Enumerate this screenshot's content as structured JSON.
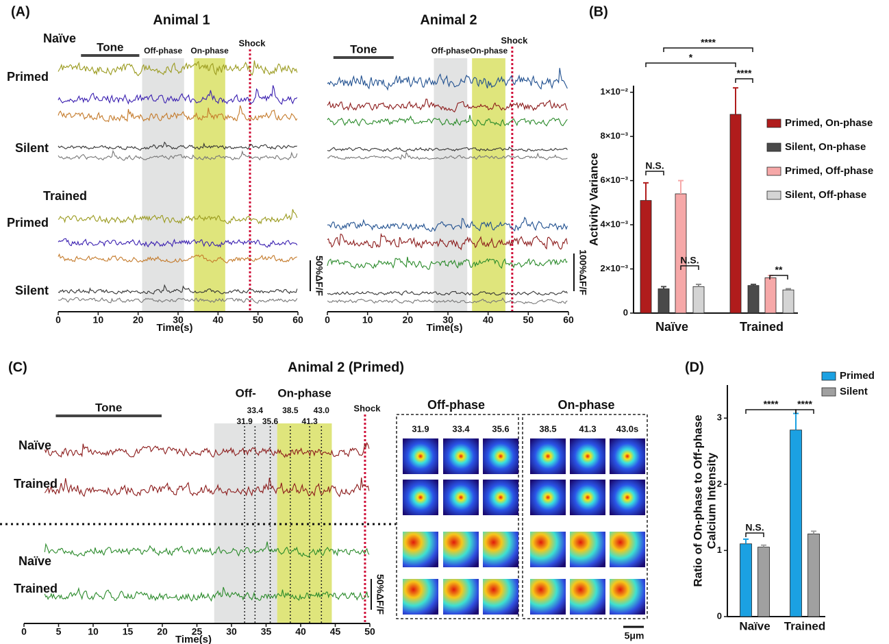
{
  "panel_labels": [
    "(A)",
    "(B)",
    "(C)",
    "(D)"
  ],
  "chart_data": [
    {
      "type": "trace",
      "title": "Animal 1",
      "xlim": [
        0,
        60
      ],
      "xticks": [
        0,
        10,
        20,
        30,
        40,
        50,
        60
      ],
      "xlabel": "Time(s)",
      "events": [
        {
          "label": "Tone",
          "start": 5.7,
          "end": 20.3
        },
        {
          "label": "Off-phase",
          "start": 21,
          "end": 31.5
        },
        {
          "label": "On-phase",
          "start": 34,
          "end": 41.8
        },
        {
          "label": "Shock",
          "at": 48
        }
      ],
      "row_labels": [
        "Naïve",
        "Primed",
        "Silent",
        "Trained",
        "Primed",
        "Silent"
      ],
      "scale_bar": "50%ΔF/F"
    },
    {
      "type": "trace",
      "title": "Animal 2",
      "xlim": [
        0,
        60
      ],
      "xticks": [
        0,
        10,
        20,
        30,
        40,
        50,
        60
      ],
      "xlabel": "Time(s)",
      "events": [
        {
          "label": "Tone",
          "start": 1.5,
          "end": 16.5
        },
        {
          "label": "Off-phase",
          "start": 26.5,
          "end": 34.8
        },
        {
          "label": "On-phase",
          "start": 36,
          "end": 44.3
        },
        {
          "label": "Shock",
          "at": 46
        }
      ],
      "scale_bar": "100%ΔF/F"
    },
    {
      "type": "bar",
      "categories": [
        "Naïve",
        "Trained"
      ],
      "series": [
        {
          "name": "Primed, On-phase",
          "color": "#b01c1c",
          "values": [
            0.0051,
            0.009
          ],
          "errors": [
            0.0008,
            0.0012
          ]
        },
        {
          "name": "Silent, On-phase",
          "color": "#4a4a4a",
          "values": [
            0.0011,
            0.00125
          ],
          "errors": [
            0.0001,
            5e-05
          ]
        },
        {
          "name": "Primed, Off-phase",
          "color": "#f6a8a8",
          "values": [
            0.0054,
            0.0016
          ],
          "errors": [
            0.0006,
            0.0001
          ]
        },
        {
          "name": "Silent, Off-phase",
          "color": "#d4d4d4",
          "values": [
            0.0012,
            0.00105
          ],
          "errors": [
            0.0001,
            5e-05
          ]
        }
      ],
      "ylim": [
        0,
        0.0103
      ],
      "yticks": [
        0,
        {
          "value": 0.002,
          "label": "2×10⁻³"
        },
        {
          "value": 0.004,
          "label": "4×10⁻³"
        },
        {
          "value": 0.006,
          "label": "6×10⁻³"
        },
        {
          "value": 0.008,
          "label": "8×10⁻³"
        },
        {
          "value": 0.01,
          "label": "1×10⁻²"
        }
      ],
      "ylabel": [
        "Activity Variance"
      ],
      "legend": "right",
      "annotations": [
        "*",
        "****",
        "N.S.",
        "N.S.",
        "****",
        "**"
      ]
    },
    {
      "type": "trace",
      "title": "Animal 2 (Primed)",
      "xlim": [
        0,
        50
      ],
      "xticks": [
        0,
        5,
        10,
        15,
        20,
        25,
        30,
        35,
        40,
        45,
        50
      ],
      "xlabel": "Time(s)",
      "events": [
        {
          "label": "Tone",
          "start": 4.6,
          "end": 19.9
        },
        {
          "label": "Off-",
          "start": 27.5,
          "end": 36.6
        },
        {
          "label": "On-phase",
          "start": 36.6,
          "end": 44.5
        },
        {
          "label": "Shock",
          "at": 49.3
        }
      ],
      "time_markers": [
        31.9,
        33.4,
        35.6,
        38.5,
        41.3,
        {
          "value": 43,
          "label": "43.0"
        }
      ],
      "row_labels": [
        "Naïve",
        "Trained",
        "Naïve",
        "Trained"
      ],
      "scale_bar": "50%ΔF/F"
    },
    {
      "type": "bar",
      "categories": [
        "Naïve",
        "Trained"
      ],
      "series": [
        {
          "name": "Primed",
          "color": "#1ba1e2",
          "values": [
            1.1,
            2.82
          ],
          "errors": [
            0.07,
            0.25
          ]
        },
        {
          "name": "Silent",
          "color": "#a0a0a0",
          "values": [
            1.05,
            1.25
          ],
          "errors": [
            0.03,
            0.04
          ]
        }
      ],
      "ylim": [
        0,
        3.5
      ],
      "yticks": [
        0,
        1,
        2,
        3
      ],
      "ylabel": [
        "Ratio of On-phase to Off-phase",
        "Calcium Intensity"
      ],
      "legend": "top-right",
      "annotations": [
        "****",
        "****",
        "N.S."
      ]
    }
  ],
  "heatmaps": {
    "headers": [
      "Off-phase",
      "On-phase"
    ],
    "frames": [
      "31.9",
      "33.4",
      "35.6",
      "38.5",
      "41.3",
      "43.0s"
    ],
    "scale_bar": "5μm"
  }
}
